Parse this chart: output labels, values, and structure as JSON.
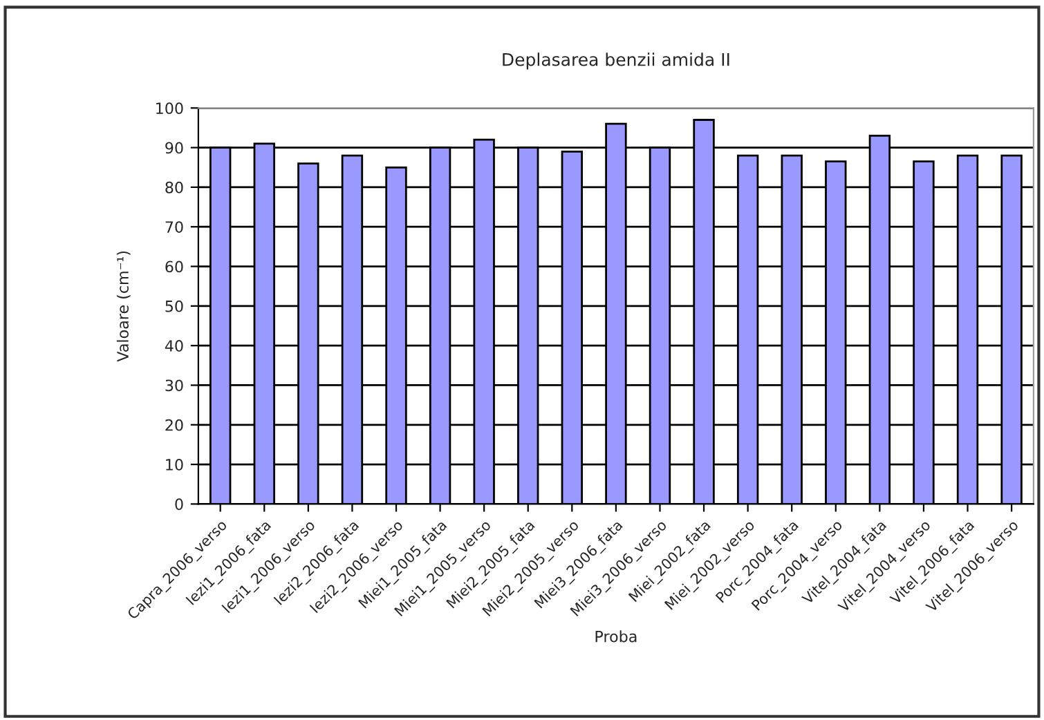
{
  "chart_data": {
    "type": "bar",
    "title": "Deplasarea benzii amida II",
    "xlabel": "Proba",
    "ylabel": "Valoare (cm⁻¹)",
    "categories": [
      "Capra_2006_verso",
      "Iezi1_2006_fata",
      "Iezi1_2006_verso",
      "Iezi2_2006_fata",
      "Iezi2_2006_verso",
      "Miei1_2005_fata",
      "Miei1_2005_verso",
      "Miei2_2005_fata",
      "Miei2_2005_verso",
      "Miei3_2006_fata",
      "Miei3_2006_verso",
      "Miei_2002_fata",
      "Miei_2002_verso",
      "Porc_2004_fata",
      "Porc_2004_verso",
      "Vitel_2004_fata",
      "Vitel_2004_verso",
      "Vitel_2006_fata",
      "Vitel_2006_verso"
    ],
    "values": [
      90,
      91,
      86,
      88,
      85,
      90,
      92,
      90,
      89,
      96,
      90,
      97,
      88,
      88,
      86.5,
      93,
      86.5,
      88,
      88
    ],
    "color": "#9999ff",
    "ylim": [
      0,
      100
    ],
    "yticks": [
      0,
      10,
      20,
      30,
      40,
      50,
      60,
      70,
      80,
      90,
      100
    ],
    "grid": "y",
    "legend": false
  }
}
